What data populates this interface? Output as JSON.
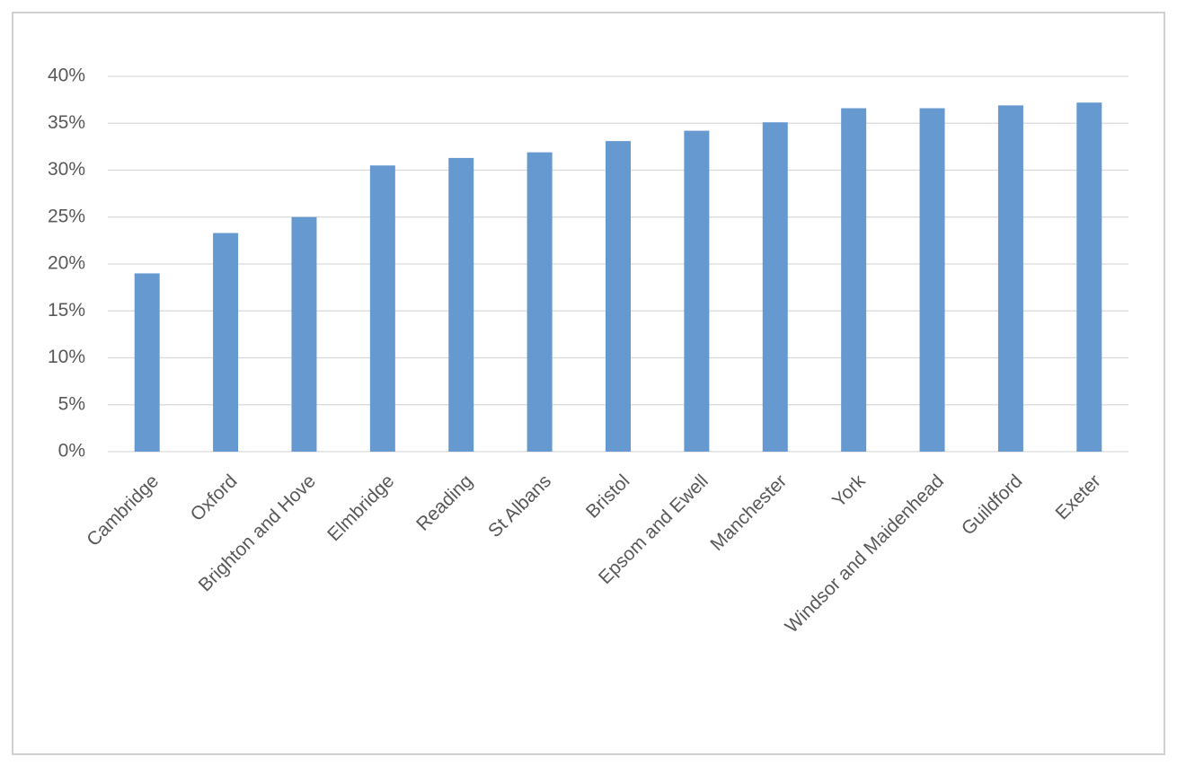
{
  "chart_data": {
    "type": "bar",
    "categories": [
      "Cambridge",
      "Oxford",
      "Brighton and Hove",
      "Elmbridge",
      "Reading",
      "St Albans",
      "Bristol",
      "Epsom and Ewell",
      "Manchester",
      "York",
      "Windsor and Maidenhead",
      "Guildford",
      "Exeter"
    ],
    "values": [
      19.0,
      23.3,
      25.0,
      30.5,
      31.3,
      31.9,
      33.1,
      34.2,
      35.1,
      36.6,
      36.6,
      36.9,
      37.2
    ],
    "color": "#6699d0",
    "ylim": [
      0,
      40
    ],
    "yticks": [
      {
        "value": 0,
        "label": "0%"
      },
      {
        "value": 5,
        "label": "5%"
      },
      {
        "value": 10,
        "label": "10%"
      },
      {
        "value": 15,
        "label": "15%"
      },
      {
        "value": 20,
        "label": "20%"
      },
      {
        "value": 25,
        "label": "25%"
      },
      {
        "value": 30,
        "label": "30%"
      },
      {
        "value": 35,
        "label": "35%"
      },
      {
        "value": 40,
        "label": "40%"
      }
    ],
    "grid": true
  }
}
